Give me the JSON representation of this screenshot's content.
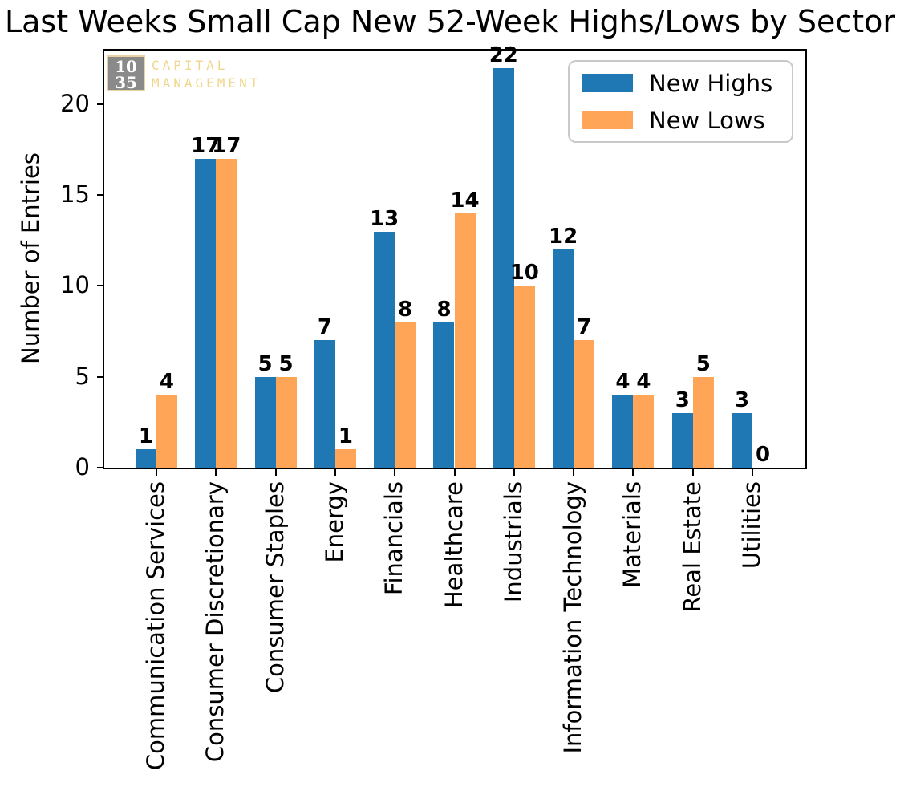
{
  "chart_data": {
    "type": "bar",
    "title": "Last Weeks Small Cap New 52-Week Highs/Lows by Sector",
    "xlabel": "",
    "ylabel": "Number of Entries",
    "categories": [
      "Communication Services",
      "Consumer Discretionary",
      "Consumer Staples",
      "Energy",
      "Financials",
      "Healthcare",
      "Industrials",
      "Information Technology",
      "Materials",
      "Real Estate",
      "Utilities"
    ],
    "series": [
      {
        "name": "New Highs",
        "color": "#1f77b4",
        "values": [
          1,
          17,
          5,
          7,
          13,
          8,
          22,
          12,
          4,
          3,
          3
        ]
      },
      {
        "name": "New Lows",
        "color": "#ffa557",
        "values": [
          4,
          17,
          5,
          1,
          8,
          14,
          10,
          7,
          4,
          5,
          0
        ]
      }
    ],
    "yticks": [
      0,
      5,
      10,
      15,
      20
    ],
    "ylim": [
      0,
      23
    ],
    "grid": false,
    "bar_value_labels": true,
    "legend_position": "upper right",
    "xtick_rotation": 90
  },
  "legend": {
    "items": [
      {
        "label": "New Highs",
        "color": "#1f77b4"
      },
      {
        "label": "New Lows",
        "color": "#ffa557"
      }
    ]
  },
  "logo": {
    "box_line1": "10",
    "box_line2": "35",
    "text_line1": "CAPITAL",
    "text_line2": "MANAGEMENT",
    "box_bg": "#8a8a8a",
    "box_border": "#e9d3a2",
    "number_color": "#ffffff",
    "text_color": "#f0d68c"
  }
}
